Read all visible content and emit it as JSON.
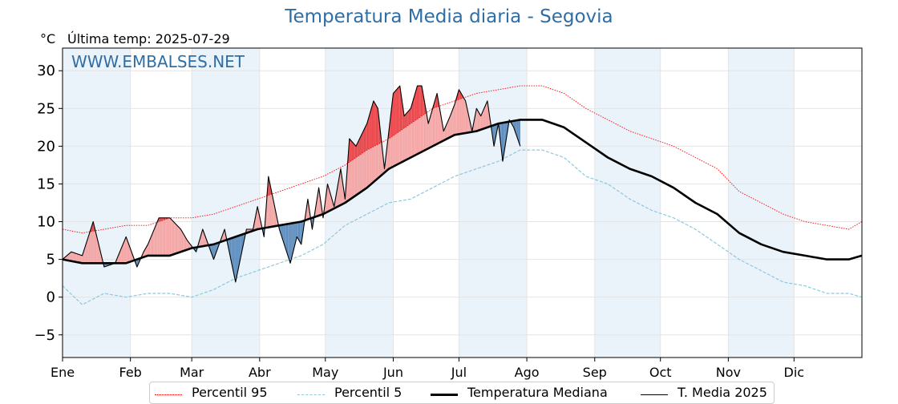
{
  "title": "Temperatura Media diaria - Segovia",
  "unit": "°C",
  "last_temp": "Última temp: 2025-07-29",
  "watermark": "WWW.EMBALSES.NET",
  "colors": {
    "title": "#2f6ea5",
    "p95": "#ff0000",
    "p5": "#8ec8dc",
    "median": "#000000",
    "current": "#000000",
    "above": "#f4a6a6",
    "above_p95": "#e8474b",
    "below": "#5f8fbf",
    "below_p5": "#102f5a",
    "month_band": "#eaf2fa"
  },
  "legend": [
    {
      "key": "p95",
      "label": "Percentil 95"
    },
    {
      "key": "p5",
      "label": "Percentil 5"
    },
    {
      "key": "median",
      "label": "Temperatura Mediana"
    },
    {
      "key": "current",
      "label": "T. Media 2025"
    }
  ],
  "chart_data": {
    "type": "line",
    "title": "Temperatura Media diaria - Segovia",
    "ylabel": "°C",
    "ylim": [
      -8,
      33
    ],
    "xlim": [
      1,
      366
    ],
    "yticks": [
      -5,
      0,
      5,
      10,
      15,
      20,
      25,
      30
    ],
    "month_ticks": [
      {
        "label": "Ene",
        "day": 1
      },
      {
        "label": "Feb",
        "day": 32
      },
      {
        "label": "Mar",
        "day": 60
      },
      {
        "label": "Abr",
        "day": 91
      },
      {
        "label": "May",
        "day": 121
      },
      {
        "label": "Jun",
        "day": 152
      },
      {
        "label": "Jul",
        "day": 182
      },
      {
        "label": "Ago",
        "day": 213
      },
      {
        "label": "Sep",
        "day": 244
      },
      {
        "label": "Oct",
        "day": 274
      },
      {
        "label": "Nov",
        "day": 305
      },
      {
        "label": "Dic",
        "day": 335
      }
    ],
    "grid": true,
    "legend_position": "bottom",
    "series": [
      {
        "name": "Percentil 95",
        "style": "dotted",
        "x": [
          1,
          10,
          20,
          30,
          40,
          50,
          60,
          70,
          80,
          90,
          100,
          110,
          120,
          130,
          140,
          150,
          160,
          170,
          180,
          190,
          200,
          210,
          220,
          230,
          240,
          250,
          260,
          270,
          280,
          290,
          300,
          310,
          320,
          330,
          340,
          350,
          360,
          366
        ],
        "values": [
          9,
          8.5,
          9,
          9.5,
          9.5,
          10.5,
          10.5,
          11,
          12,
          13,
          14,
          15,
          16,
          17.5,
          19.5,
          21,
          23,
          25,
          26,
          27,
          27.5,
          28,
          28,
          27,
          25,
          23.5,
          22,
          21,
          20,
          18.5,
          17,
          14,
          12.5,
          11,
          10,
          9.5,
          9,
          10
        ]
      },
      {
        "name": "Percentil 5",
        "style": "dashed",
        "x": [
          1,
          10,
          20,
          30,
          40,
          50,
          60,
          70,
          80,
          90,
          100,
          110,
          120,
          130,
          140,
          150,
          160,
          170,
          180,
          190,
          200,
          210,
          220,
          230,
          240,
          250,
          260,
          270,
          280,
          290,
          300,
          310,
          320,
          330,
          340,
          350,
          360,
          366
        ],
        "values": [
          1.5,
          -1,
          0.5,
          0,
          0.5,
          0.5,
          0,
          1,
          2.5,
          3.5,
          4.5,
          5.5,
          7,
          9.5,
          11,
          12.5,
          13,
          14.5,
          16,
          17,
          18,
          19.5,
          19.5,
          18.5,
          16,
          15,
          13,
          11.5,
          10.5,
          9,
          7,
          5,
          3.5,
          2,
          1.5,
          0.5,
          0.5,
          0
        ]
      },
      {
        "name": "Temperatura Mediana",
        "style": "solid-bold",
        "x": [
          1,
          10,
          20,
          30,
          40,
          50,
          60,
          70,
          80,
          90,
          100,
          110,
          120,
          130,
          140,
          150,
          160,
          170,
          180,
          190,
          200,
          210,
          220,
          230,
          240,
          250,
          260,
          270,
          280,
          290,
          300,
          310,
          320,
          330,
          340,
          350,
          360,
          366
        ],
        "values": [
          5,
          4.5,
          4.5,
          4.5,
          5.5,
          5.5,
          6.5,
          7,
          8,
          9,
          9.5,
          10,
          11,
          12.5,
          14.5,
          17,
          18.5,
          20,
          21.5,
          22,
          23,
          23.5,
          23.5,
          22.5,
          20.5,
          18.5,
          17,
          16,
          14.5,
          12.5,
          11,
          8.5,
          7,
          6,
          5.5,
          5,
          5,
          5.5
        ]
      },
      {
        "name": "T. Media 2025",
        "style": "solid",
        "x": [
          1,
          5,
          10,
          15,
          20,
          25,
          30,
          35,
          38,
          40,
          45,
          50,
          55,
          58,
          62,
          65,
          70,
          75,
          80,
          85,
          88,
          90,
          93,
          95,
          100,
          105,
          108,
          110,
          113,
          115,
          118,
          120,
          122,
          125,
          128,
          130,
          132,
          135,
          140,
          143,
          145,
          148,
          150,
          152,
          155,
          157,
          160,
          163,
          165,
          168,
          170,
          172,
          175,
          178,
          180,
          182,
          185,
          188,
          190,
          192,
          195,
          198,
          200,
          202,
          205,
          207,
          210
        ],
        "values": [
          5,
          6,
          5.5,
          10,
          4,
          4.5,
          8,
          4,
          6,
          7,
          10.5,
          10.5,
          9,
          7.5,
          6,
          9,
          5,
          9,
          2,
          9,
          9,
          12,
          8,
          16,
          9,
          4.5,
          8,
          7,
          13,
          9,
          14.5,
          10.5,
          15,
          12,
          17,
          13,
          21,
          20,
          23,
          26,
          25,
          17,
          22,
          27,
          28,
          24,
          25,
          28,
          28,
          23,
          25,
          27,
          22,
          24,
          25.5,
          27.5,
          26,
          22,
          25,
          24,
          26,
          20,
          23,
          18,
          23.5,
          22.5,
          20
        ]
      }
    ]
  }
}
